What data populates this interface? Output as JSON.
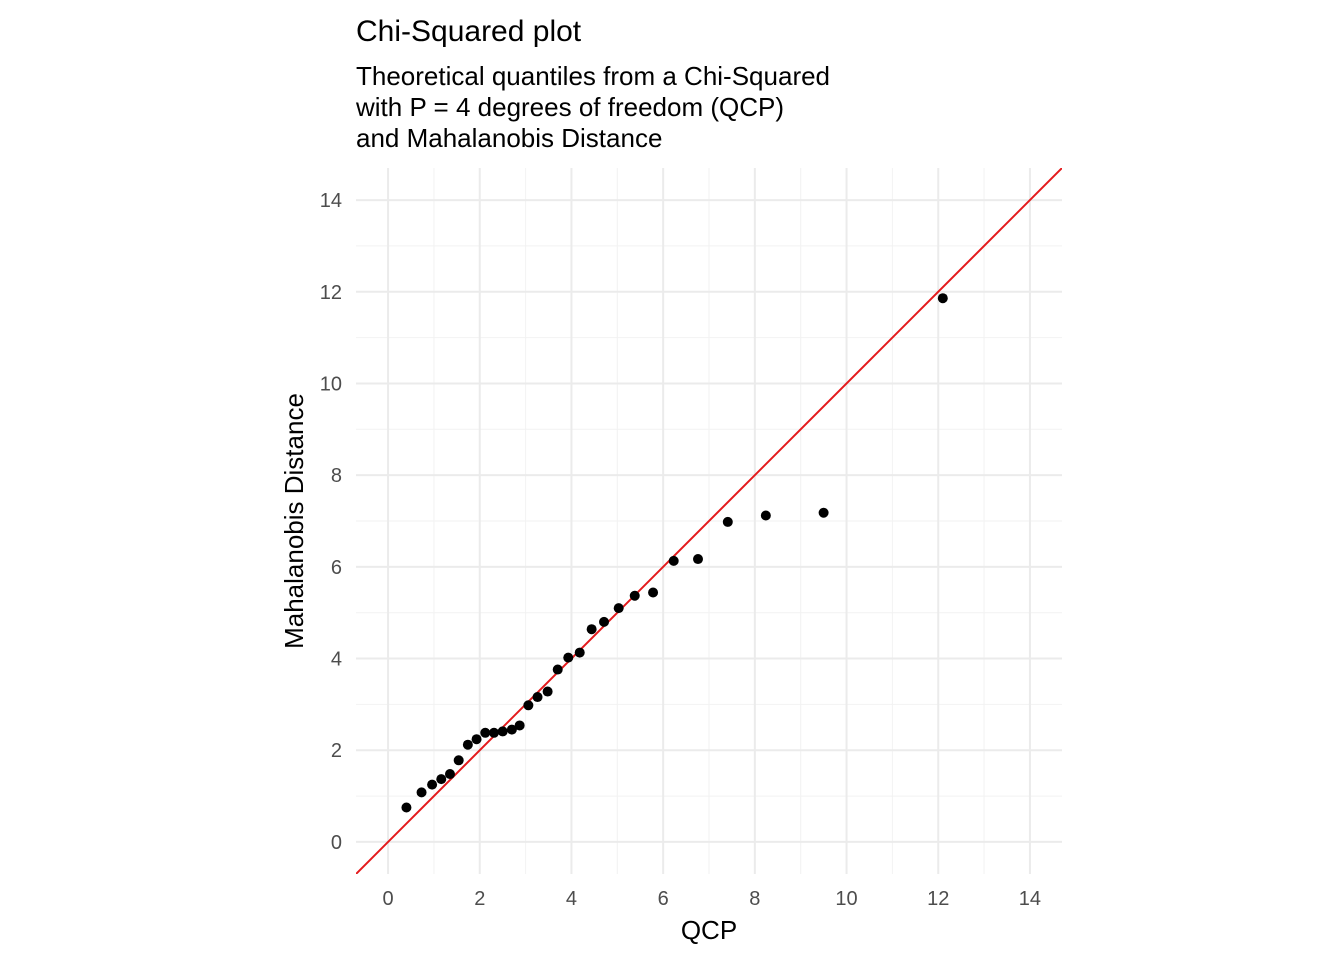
{
  "chart_data": {
    "type": "scatter",
    "title": "Chi-Squared plot",
    "subtitle": [
      "Theoretical quantiles from a Chi-Squared",
      "with P = 4 degrees of freedom (QCP)",
      "and Mahalanobis Distance"
    ],
    "xlabel": "QCP",
    "ylabel": "Mahalanobis Distance",
    "xlim": [
      -0.7,
      14.7
    ],
    "ylim": [
      -0.7,
      14.7
    ],
    "xticks": [
      0,
      2,
      4,
      6,
      8,
      10,
      12,
      14
    ],
    "yticks": [
      0,
      2,
      4,
      6,
      8,
      10,
      12,
      14
    ],
    "grid": true,
    "reference_line": {
      "intercept": 0,
      "slope": 1,
      "color": "#e41a1c"
    },
    "point_color": "#000000",
    "series": [
      {
        "x": [
          0.4,
          0.73,
          0.96,
          1.16,
          1.35,
          1.54,
          1.74,
          1.93,
          2.12,
          2.31,
          2.5,
          2.7,
          2.87,
          3.06,
          3.26,
          3.48,
          3.7,
          3.93,
          4.18,
          4.44,
          4.71,
          5.03,
          5.38,
          5.78,
          6.23,
          6.76,
          7.41,
          8.24,
          9.5,
          12.1
        ],
        "y": [
          0.75,
          1.08,
          1.25,
          1.37,
          1.48,
          1.78,
          2.12,
          2.24,
          2.38,
          2.38,
          2.41,
          2.45,
          2.54,
          2.98,
          3.16,
          3.28,
          3.76,
          4.02,
          4.13,
          4.64,
          4.8,
          5.1,
          5.37,
          5.44,
          6.13,
          6.17,
          6.98,
          7.12,
          7.18,
          11.86
        ]
      }
    ]
  }
}
